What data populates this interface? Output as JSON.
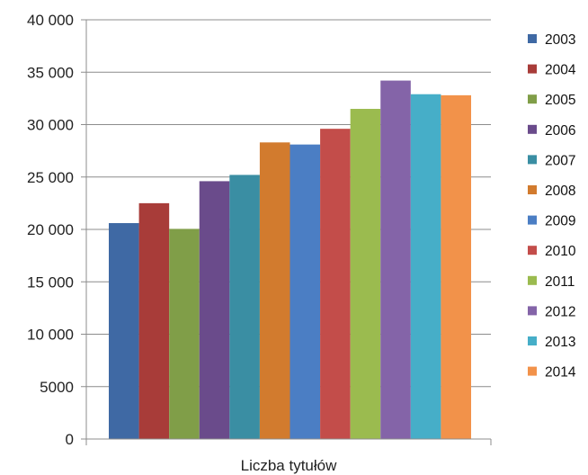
{
  "chart_data": {
    "type": "bar",
    "categories": [
      "Liczba tytułów"
    ],
    "series": [
      {
        "name": "2003",
        "values": [
          20600
        ],
        "color": "#3f69a4"
      },
      {
        "name": "2004",
        "values": [
          22500
        ],
        "color": "#a83c39"
      },
      {
        "name": "2005",
        "values": [
          20050
        ],
        "color": "#809e48"
      },
      {
        "name": "2006",
        "values": [
          24600
        ],
        "color": "#6a4b8b"
      },
      {
        "name": "2007",
        "values": [
          25200
        ],
        "color": "#3a8ea3"
      },
      {
        "name": "2008",
        "values": [
          28300
        ],
        "color": "#d27b2e"
      },
      {
        "name": "2009",
        "values": [
          28100
        ],
        "color": "#4b7ec4"
      },
      {
        "name": "2010",
        "values": [
          29600
        ],
        "color": "#c34d4a"
      },
      {
        "name": "2011",
        "values": [
          31500
        ],
        "color": "#9bbb4f"
      },
      {
        "name": "2012",
        "values": [
          34200
        ],
        "color": "#8464a8"
      },
      {
        "name": "2013",
        "values": [
          32900
        ],
        "color": "#46aec8"
      },
      {
        "name": "2014",
        "values": [
          32800
        ],
        "color": "#f2924a"
      }
    ],
    "title": "",
    "xlabel": "Liczba tytułów",
    "ylabel": "",
    "ylim": [
      0,
      40000
    ],
    "yticks": [
      0,
      5000,
      10000,
      15000,
      20000,
      25000,
      30000,
      35000,
      40000
    ],
    "ytick_labels": [
      "0",
      "5000",
      "10 000",
      "15 000",
      "20 000",
      "25 000",
      "30 000",
      "35 000",
      "40 000"
    ],
    "grid": true,
    "legend_position": "right"
  }
}
